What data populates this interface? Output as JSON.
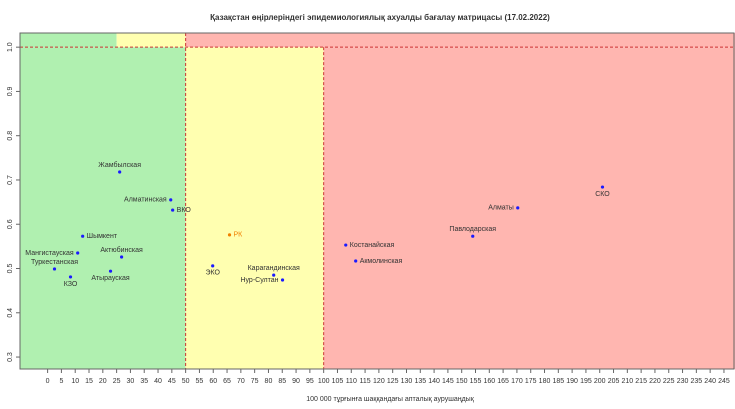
{
  "chart_data": {
    "type": "scatter",
    "title": "Қазақстан өңірлеріндегі эпидемиологиялық ахуалды бағалау матрицасы  (17.02.2022)",
    "x_label": "100 000 тұрғынға шаққандағы апталық аурушаңдық",
    "labels": [
      "Жамбылская",
      "Алматинская",
      "ВКО",
      "Шымкент",
      "Мангистауская",
      "Актюбинская",
      "Туркестанская",
      "КЗО",
      "Атырауская",
      "РК",
      "ЭКО",
      "Карагандинская",
      "Нур-Султан",
      "Костанайская",
      "Акмолинская",
      "Павлодарская",
      "Алматы",
      "СКО"
    ],
    "x": [
      26.1,
      44.6,
      45.3,
      12.7,
      10.9,
      26.8,
      2.5,
      8.3,
      22.8,
      65.9,
      59.8,
      81.9,
      85.1,
      108,
      111.6,
      154,
      170.3,
      201
    ],
    "values": [
      0.718,
      0.655,
      0.632,
      0.573,
      0.535,
      0.526,
      0.499,
      0.481,
      0.494,
      0.576,
      0.506,
      0.485,
      0.474,
      0.553,
      0.517,
      0.573,
      0.637,
      0.684
    ],
    "colors": [
      "#1a1aff",
      "#1a1aff",
      "#1a1aff",
      "#1a1aff",
      "#1a1aff",
      "#1a1aff",
      "#1a1aff",
      "#1a1aff",
      "#1a1aff",
      "#f08000",
      "#1a1aff",
      "#1a1aff",
      "#1a1aff",
      "#1a1aff",
      "#1a1aff",
      "#1a1aff",
      "#1a1aff",
      "#1a1aff"
    ],
    "xlim": [
      -10,
      249
    ],
    "ylim": [
      0.273,
      1.032
    ],
    "xticks": [
      0,
      5,
      10,
      15,
      20,
      25,
      30,
      35,
      40,
      45,
      50,
      55,
      60,
      65,
      70,
      75,
      80,
      85,
      90,
      95,
      100,
      105,
      110,
      115,
      120,
      125,
      130,
      135,
      140,
      145,
      150,
      155,
      160,
      165,
      170,
      175,
      180,
      185,
      190,
      195,
      200,
      205,
      210,
      215,
      220,
      225,
      230,
      235,
      240,
      245
    ],
    "yticks": [
      0.3,
      0.4,
      0.5,
      0.6,
      0.7,
      0.8,
      0.9,
      {
        "value": 1,
        "label": "1.0"
      }
    ],
    "x_thresholds": [
      25,
      50,
      100
    ],
    "y_threshold": 1,
    "zone_colors": [
      "#b0f0b0",
      "#ffffb0",
      "#ffb6b0"
    ]
  }
}
